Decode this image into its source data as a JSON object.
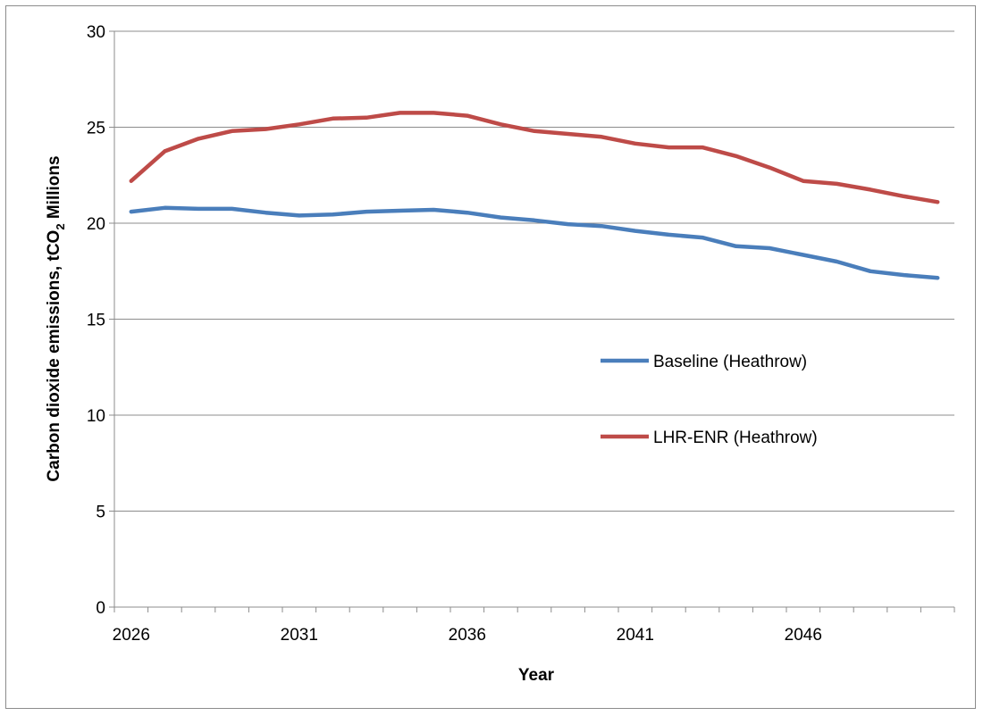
{
  "chart_data": {
    "type": "line",
    "title": "",
    "xlabel": "Year",
    "ylabel": {
      "prefix": "Carbon dioxide emissions, tCO",
      "subscript": "2",
      "suffix": " Millions"
    },
    "ylim": [
      0,
      30
    ],
    "yticks": [
      0,
      5,
      10,
      15,
      20,
      25,
      30
    ],
    "xlim": [
      2026,
      2050
    ],
    "xtick_labels": [
      2026,
      2031,
      2036,
      2041,
      2046
    ],
    "grid": "horizontal major",
    "legend_position": "right-center",
    "x": [
      2026,
      2027,
      2028,
      2029,
      2030,
      2031,
      2032,
      2033,
      2034,
      2035,
      2036,
      2037,
      2038,
      2039,
      2040,
      2041,
      2042,
      2043,
      2044,
      2045,
      2046,
      2047,
      2048,
      2049,
      2050
    ],
    "series": [
      {
        "name": "Baseline (Heathrow)",
        "color": "#4a7ebb",
        "values": [
          20.6,
          20.8,
          20.75,
          20.75,
          20.55,
          20.4,
          20.45,
          20.6,
          20.65,
          20.7,
          20.55,
          20.3,
          20.15,
          19.95,
          19.85,
          19.6,
          19.4,
          19.25,
          18.8,
          18.7,
          18.35,
          18.0,
          17.5,
          17.3,
          17.15
        ]
      },
      {
        "name": "LHR-ENR (Heathrow)",
        "color": "#be4b48",
        "values": [
          22.2,
          23.75,
          24.4,
          24.8,
          24.9,
          25.15,
          25.45,
          25.5,
          25.75,
          25.75,
          25.6,
          25.15,
          24.8,
          24.65,
          24.5,
          24.15,
          23.95,
          23.95,
          23.5,
          22.9,
          22.2,
          22.05,
          21.75,
          21.4,
          21.1
        ]
      }
    ]
  }
}
